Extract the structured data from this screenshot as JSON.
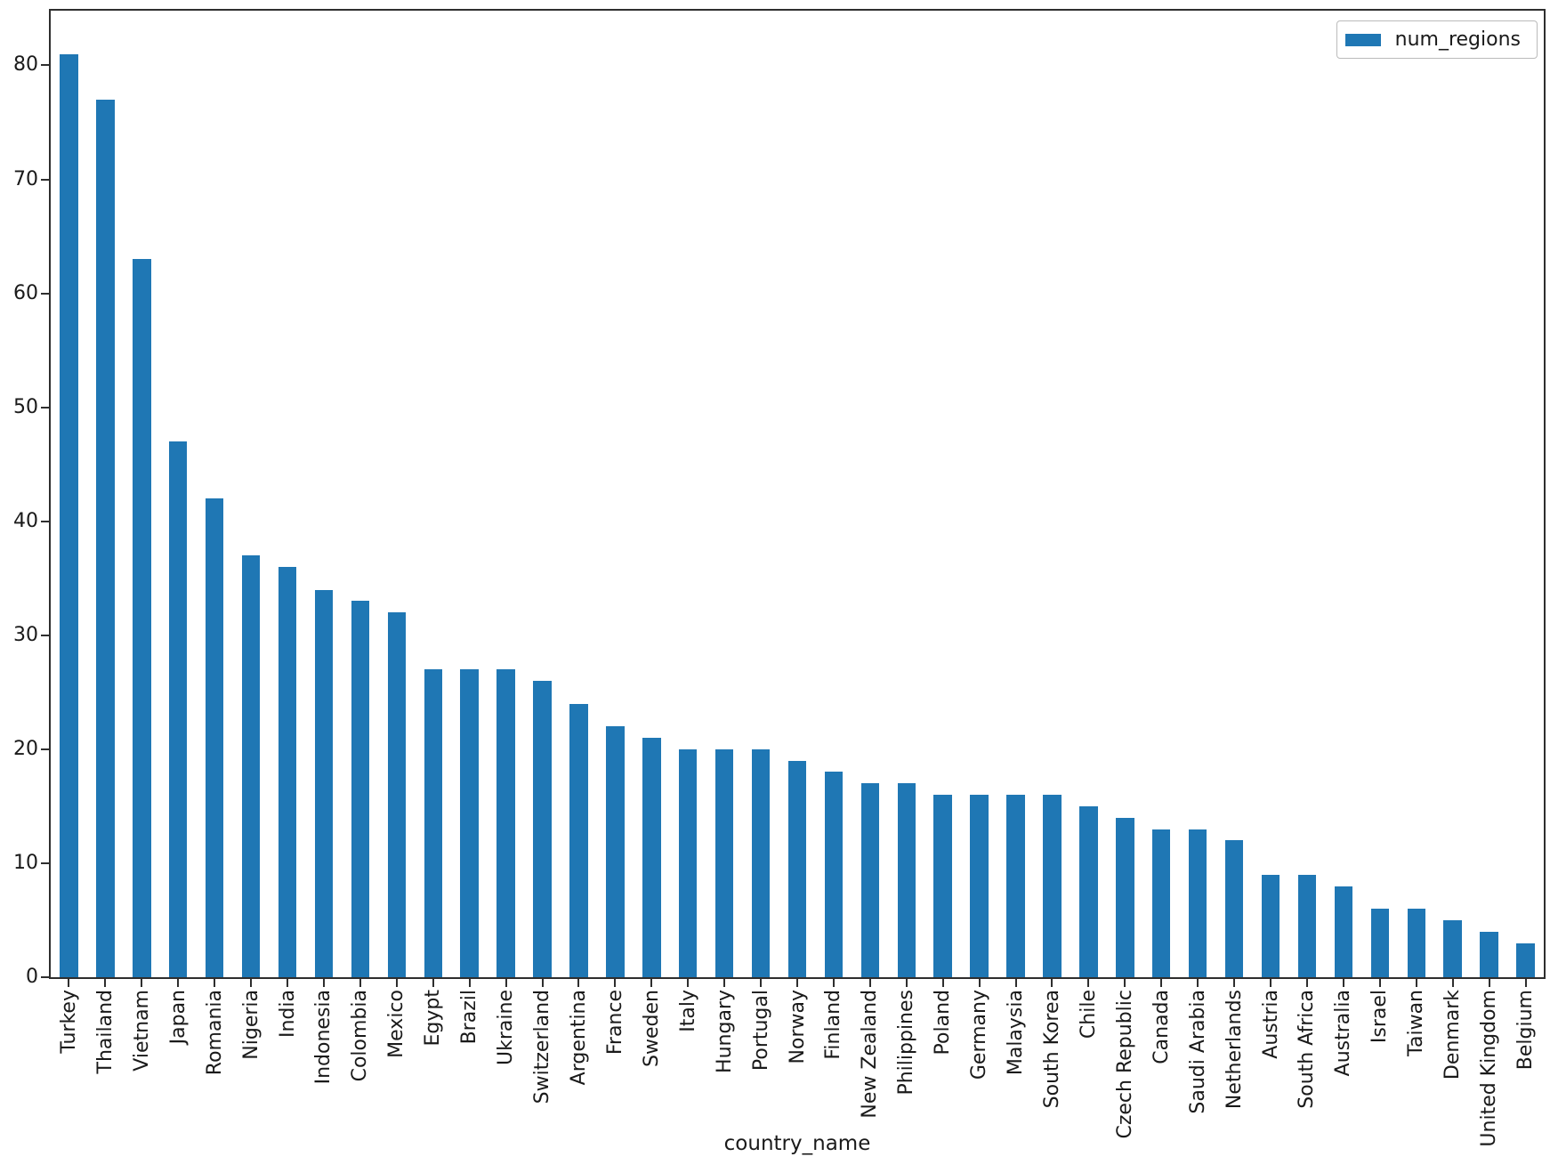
{
  "figure": {
    "background": "#ffffff",
    "text_color": "#1a1a1a",
    "spine_color": "#2e2e2e"
  },
  "chart_data": {
    "type": "bar",
    "title": "",
    "xlabel": "country_name",
    "ylabel": "",
    "grid": false,
    "legend_position": "upper right",
    "bar_color": "#1f77b4",
    "ylim": [
      0,
      84.8
    ],
    "yticks": [
      0,
      10,
      20,
      30,
      40,
      50,
      60,
      70,
      80
    ],
    "categories": [
      "Turkey",
      "Thailand",
      "Vietnam",
      "Japan",
      "Romania",
      "Nigeria",
      "India",
      "Indonesia",
      "Colombia",
      "Mexico",
      "Egypt",
      "Brazil",
      "Ukraine",
      "Switzerland",
      "Argentina",
      "France",
      "Sweden",
      "Italy",
      "Hungary",
      "Portugal",
      "Norway",
      "Finland",
      "New Zealand",
      "Philippines",
      "Poland",
      "Germany",
      "Malaysia",
      "South Korea",
      "Chile",
      "Czech Republic",
      "Canada",
      "Saudi Arabia",
      "Netherlands",
      "Austria",
      "South Africa",
      "Australia",
      "Israel",
      "Taiwan",
      "Denmark",
      "United Kingdom",
      "Belgium"
    ],
    "series": [
      {
        "name": "num_regions",
        "values": [
          81,
          77,
          63,
          47,
          42,
          37,
          36,
          34,
          33,
          32,
          27,
          27,
          27,
          26,
          24,
          22,
          21,
          20,
          20,
          20,
          19,
          18,
          17,
          17,
          16,
          16,
          16,
          16,
          15,
          14,
          13,
          13,
          12,
          9,
          9,
          8,
          6,
          6,
          5,
          4,
          3
        ]
      }
    ]
  }
}
